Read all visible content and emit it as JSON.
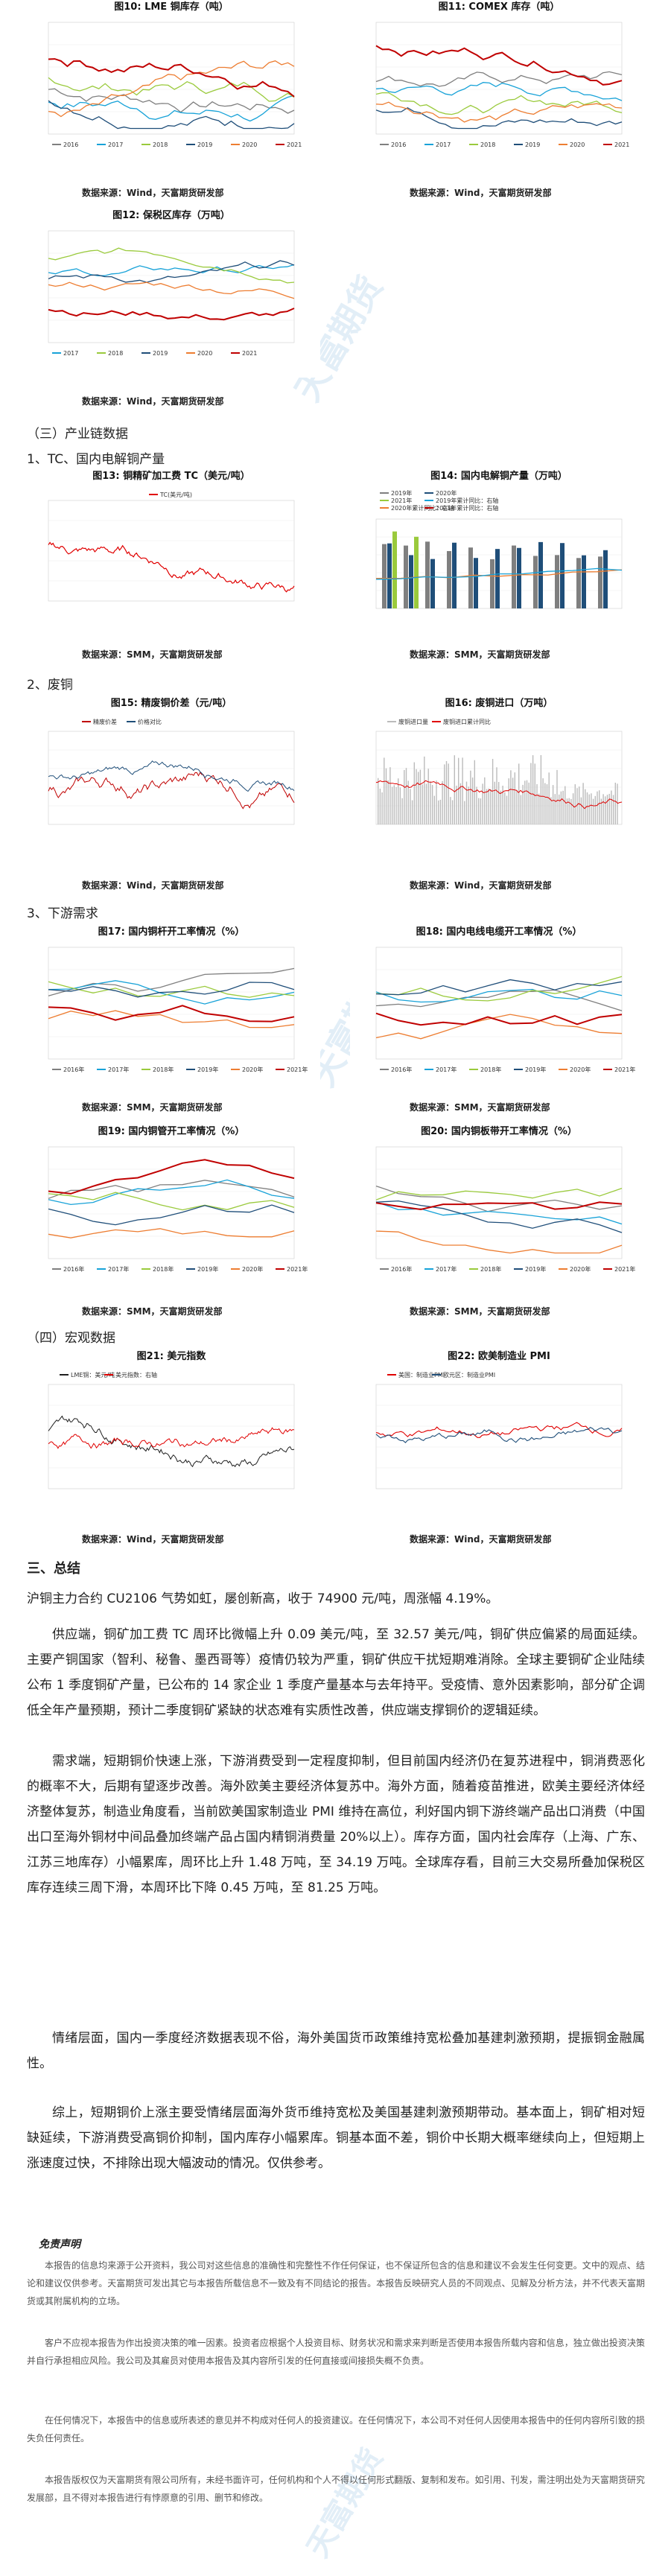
{
  "figures": {
    "f10": {
      "title": "图10: LME 铜库存（吨）",
      "source": "数据来源：Wind，天富期货研发部",
      "legend": [
        "2016",
        "2017",
        "2018",
        "2019",
        "2020",
        "2021"
      ]
    },
    "f11": {
      "title": "图11: COMEX 库存（吨）",
      "source": "数据来源：Wind，天富期货研发部",
      "legend": [
        "2016",
        "2017",
        "2018",
        "2019",
        "2020",
        "2021"
      ]
    },
    "f12": {
      "title": "图12: 保税区库存（万吨）",
      "source": "数据来源：Wind，天富期货研发部",
      "legend": [
        "2017",
        "2018",
        "2019",
        "2020",
        "2021"
      ]
    },
    "f13": {
      "title": "图13: 铜精矿加工费 TC（美元/吨）",
      "source": "数据来源：SMM，天富期货研发部",
      "legend": [
        "TC(美元/吨)"
      ]
    },
    "f14": {
      "title": "图14: 国内电解铜产量（万吨）",
      "source": "数据来源：SMM，天富期货研发部",
      "legend": [
        "2019年",
        "2020年",
        "2021年",
        "2019年累计同比：右轴",
        "2020年累计同比：右轴",
        "2021年累计同比：右轴"
      ]
    },
    "f15": {
      "title": "图15: 精废铜价差（元/吨）",
      "source": "数据来源：Wind，天富期货研发部",
      "legend": [
        "精废价差",
        "价格对比"
      ]
    },
    "f16": {
      "title": "图16: 废铜进口（万吨）",
      "source": "数据来源：Wind，天富期货研发部",
      "legend": [
        "废铜进口量",
        "废铜进口累计同比"
      ]
    },
    "f17": {
      "title": "图17: 国内铜杆开工率情况（%）",
      "source": "数据来源：SMM，天富期货研发部",
      "legend": [
        "2016年",
        "2017年",
        "2018年",
        "2019年",
        "2020年",
        "2021年"
      ]
    },
    "f18": {
      "title": "图18: 国内电线电缆开工率情况（%）",
      "source": "数据来源：SMM，天富期货研发部",
      "legend": [
        "2016年",
        "2017年",
        "2018年",
        "2019年",
        "2020年",
        "2021年"
      ]
    },
    "f19": {
      "title": "图19: 国内铜管开工率情况（%）",
      "source": "数据来源：SMM，天富期货研发部",
      "legend": [
        "2016年",
        "2017年",
        "2018年",
        "2019年",
        "2020年",
        "2021年"
      ]
    },
    "f20": {
      "title": "图20: 国内铜板带开工率情况（%）",
      "source": "数据来源：SMM，天富期货研发部",
      "legend": [
        "2016年",
        "2017年",
        "2018年",
        "2019年",
        "2020年",
        "2021年"
      ]
    },
    "f21": {
      "title": "图21: 美元指数",
      "source": "数据来源：Wind，天富期货研发部",
      "legend": [
        "LME铜：美元/吨",
        "美元指数：右轴"
      ]
    },
    "f22": {
      "title": "图22: 欧美制造业 PMI",
      "source": "数据来源：Wind，天富期货研发部",
      "legend": [
        "美国：制造业PMI",
        "欧元区：制造业PMI"
      ]
    }
  },
  "sections": {
    "s3": "（三）产业链数据",
    "s3_1": "1、TC、国内电解铜产量",
    "s3_2": "2、废铜",
    "s3_3": "3、下游需求",
    "s4": "（四）宏观数据",
    "summary": "三、总结"
  },
  "summary": {
    "first": "沪铜主力合约 CU2106 气势如虹，屡创新高，收于 74900 元/吨，周涨幅 4.19%。",
    "p1": "供应端，铜矿加工费 TC 周环比微幅上升 0.09 美元/吨，至 32.57 美元/吨，铜矿供应偏紧的局面延续。主要产铜国家（智利、秘鲁、墨西哥等）疫情仍较为严重，铜矿供应干扰短期难消除。全球主要铜矿企业陆续公布 1 季度铜矿产量，已公布的 14 家企业 1 季度产量基本与去年持平。受疫情、意外因素影响，部分矿企调低全年产量预期，预计二季度铜矿紧缺的状态难有实质性改善，供应端支撑铜价的逻辑延续。",
    "p2": "需求端，短期铜价快速上涨，下游消费受到一定程度抑制，但目前国内经济仍在复苏进程中，铜消费恶化的概率不大，后期有望逐步改善。海外欧美主要经济体复苏中。海外方面，随着疫苗推进，欧美主要经济体经济整体复苏，制造业角度看，当前欧美国家制造业 PMI 维持在高位，利好国内铜下游终端产品出口消费（中国出口至海外铜材中间品叠加终端产品占国内精铜消费量 20%以上）。库存方面，国内社会库存（上海、广东、江苏三地库存）小幅累库，周环比上升 1.48 万吨，至 34.19 万吨。全球库存看，目前三大交易所叠加保税区库存连续三周下滑，本周环比下降 0.45 万吨，至 81.25 万吨。",
    "p3": "情绪层面，国内一季度经济数据表现不俗，海外美国货币政策维持宽松叠加基建刺激预期，提振铜金融属性。",
    "p4": "综上，短期铜价上涨主要受情绪层面海外货币维持宽松及美国基建刺激预期带动。基本面上，铜矿相对短缺延续，下游消费受高铜价抑制，国内库存小幅累库。铜基本面不差，铜价中长期大概率继续向上，但短期上涨速度过快，不排除出现大幅波动的情况。仅供参考。"
  },
  "disclaimer": {
    "title": "免责声明",
    "p1": "本报告的信息均来源于公开资料，我公司对这些信息的准确性和完整性不作任何保证，也不保证所包含的信息和建议不会发生任何变更。文中的观点、结论和建议仅供参考。天富期货可发出其它与本报告所载信息不一致及有不同结论的报告。本报告反映研究人员的不同观点、见解及分析方法，并不代表天富期货或其附属机构的立场。",
    "p2": "客户不应视本报告为作出投资决策的唯一因素。投资者应根据个人投资目标、财务状况和需求来判断是否使用本报告所载内容和信息，独立做出投资决策并自行承担相应风险。我公司及其雇员对使用本报告及其内容所引发的任何直接或间接损失概不负责。",
    "p3": "在任何情况下，本报告中的信息或所表述的意见并不构成对任何人的投资建议。在任何情况下，本公司不对任何人因使用本报告中的任何内容所引致的损失负任何责任。",
    "p4": "本报告版权仅为天富期货有限公司所有，未经书面许可，任何机构和个人不得以任何形式翻版、复制和发布。如引用、刊发，需注明出处为天富期货研究发展部，且不得对本报告进行有悖原意的引用、删节和修改。"
  },
  "watermark": {
    "cn": "天富期货",
    "en": "TIANFU FUTURES"
  },
  "colors": {
    "y2016": "#7f7f7f",
    "y2017": "#17a2d8",
    "y2018": "#9aca3c",
    "y2019": "#1f4e79",
    "y2020": "#ed7d31",
    "y2021": "#c00000"
  }
}
